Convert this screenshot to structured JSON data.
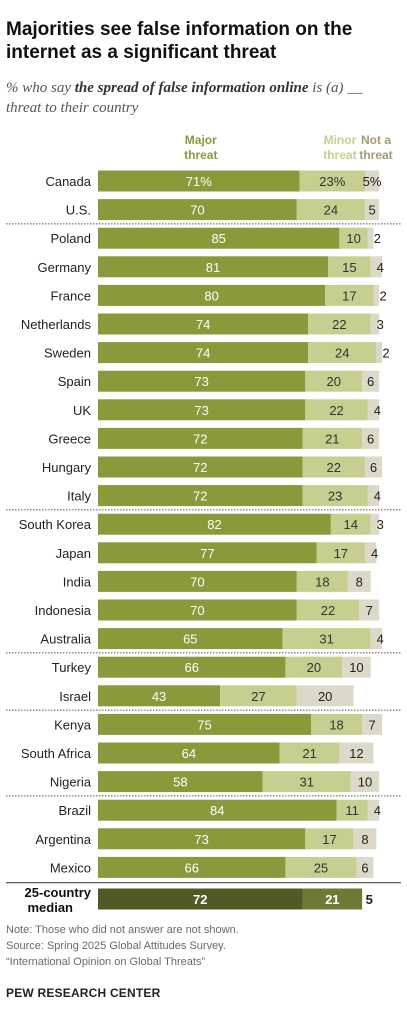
{
  "title": "Majorities see false information on the internet as a significant threat",
  "subtitle": {
    "prefix": "% who say ",
    "emphasis": "the spread of false information online",
    "suffix": " is (a) __ threat to their country"
  },
  "colors": {
    "major": "#8a9a3b",
    "minor": "#c6cf8f",
    "not": "#dcd9c8",
    "major_median": "#4f5a24",
    "minor_median": "#6e7a34",
    "not_median": "#ffffff",
    "separator": "#555555"
  },
  "chart_data": {
    "type": "bar",
    "stacked": true,
    "orientation": "horizontal",
    "series": [
      {
        "name": "Major threat",
        "values": [
          71,
          70,
          85,
          81,
          80,
          74,
          74,
          73,
          73,
          72,
          72,
          72,
          82,
          77,
          70,
          70,
          65,
          66,
          43,
          75,
          64,
          58,
          84,
          73,
          66,
          72
        ]
      },
      {
        "name": "Minor threat",
        "values": [
          23,
          24,
          10,
          15,
          17,
          22,
          24,
          20,
          22,
          21,
          22,
          23,
          14,
          17,
          18,
          22,
          31,
          20,
          27,
          18,
          21,
          31,
          11,
          17,
          25,
          21
        ]
      },
      {
        "name": "Not a threat",
        "values": [
          5,
          5,
          2,
          4,
          2,
          3,
          2,
          6,
          4,
          6,
          6,
          4,
          3,
          4,
          8,
          7,
          4,
          10,
          20,
          7,
          12,
          10,
          4,
          8,
          6,
          5
        ]
      }
    ],
    "categories": [
      "Canada",
      "U.S.",
      "Poland",
      "Germany",
      "France",
      "Netherlands",
      "Sweden",
      "Spain",
      "UK",
      "Greece",
      "Hungary",
      "Italy",
      "South Korea",
      "Japan",
      "India",
      "Indonesia",
      "Australia",
      "Turkey",
      "Israel",
      "Kenya",
      "South Africa",
      "Nigeria",
      "Brazil",
      "Argentina",
      "Mexico",
      "25-country median"
    ],
    "labels": {
      "major": [
        "71%",
        "70",
        "85",
        "81",
        "80",
        "74",
        "74",
        "73",
        "73",
        "72",
        "72",
        "72",
        "82",
        "77",
        "70",
        "70",
        "65",
        "66",
        "43",
        "75",
        "64",
        "58",
        "84",
        "73",
        "66",
        "72"
      ],
      "minor": [
        "23%",
        "24",
        "10",
        "15",
        "17",
        "22",
        "24",
        "20",
        "22",
        "21",
        "22",
        "23",
        "14",
        "17",
        "18",
        "22",
        "31",
        "20",
        "27",
        "18",
        "21",
        "31",
        "11",
        "17",
        "25",
        "21"
      ],
      "not": [
        "5%",
        "5",
        "2",
        "4",
        "2",
        "3",
        "2",
        "6",
        "4",
        "6",
        "6",
        "4",
        "3",
        "4",
        "8",
        "7",
        "4",
        "10",
        "20",
        "7",
        "12",
        "10",
        "4",
        "8",
        "6",
        "5"
      ]
    },
    "legend_headers": [
      [
        "Major",
        "threat"
      ],
      [
        "Minor",
        "threat"
      ],
      [
        "Not a",
        "threat"
      ]
    ],
    "group_starts": [
      2,
      12,
      17,
      19,
      22
    ],
    "median_index": 25,
    "median_label_lines": [
      "25-country",
      "median"
    ],
    "xlim": [
      0,
      100
    ]
  },
  "notes": [
    "Note: Those who did not answer are not shown.",
    "Source: Spring 2025 Global Attitudes Survey.",
    "“International Opinion on Global Threats”"
  ],
  "brand": "PEW RESEARCH CENTER"
}
